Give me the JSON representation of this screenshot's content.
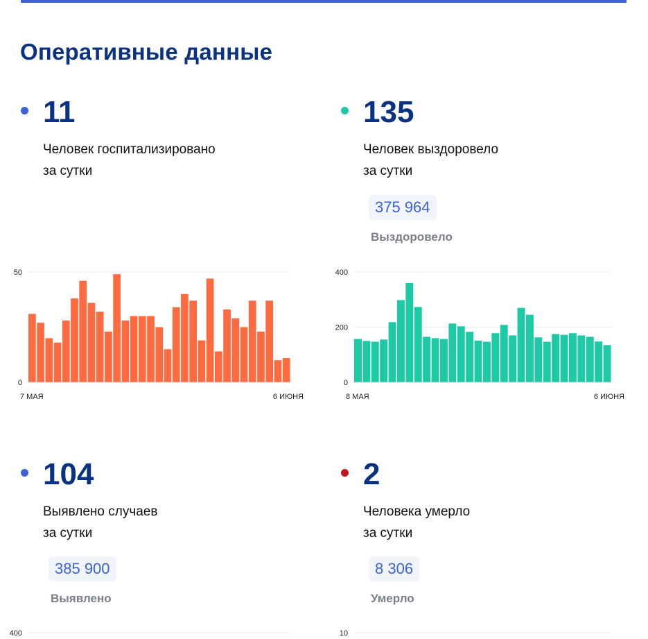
{
  "page_title": "Оперативные данные",
  "colors": {
    "accent_blue": "#3b62d8",
    "title_navy": "#0a3282",
    "hospitalized_bar": "#ff6b40",
    "recovered_bar": "#1ec9a6",
    "dead_dot": "#c8141e"
  },
  "stats": {
    "hospitalized": {
      "value": "11",
      "label_line1": "Человек госпитализировано",
      "label_line2": "за сутки"
    },
    "recovered": {
      "value": "135",
      "label_line1": "Человек выздоровело",
      "label_line2": "за сутки",
      "total": "375 964",
      "total_caption": "Выздоровело"
    },
    "cases": {
      "value": "104",
      "label_line1": "Выявлено случаев",
      "label_line2": "за сутки",
      "total": "385 900",
      "total_caption": "Выявлено"
    },
    "dead": {
      "value": "2",
      "label_line1": "Человека умерло",
      "label_line2": "за сутки",
      "total": "8 306",
      "total_caption": "Умерло"
    }
  },
  "chart_data": [
    {
      "type": "bar",
      "color": "#ff6b40",
      "ylim": [
        0,
        50
      ],
      "y_ticks": [
        "50",
        "0"
      ],
      "x_start_label": "7 МАЯ",
      "x_end_label": "6 ИЮНЯ",
      "values": [
        31,
        27,
        20,
        18,
        28,
        38,
        46,
        36,
        32,
        23,
        49,
        28,
        30,
        30,
        30,
        25,
        15,
        34,
        40,
        37,
        19,
        47,
        14,
        33,
        29,
        25,
        37,
        23,
        37,
        10,
        11
      ],
      "grid": true
    },
    {
      "type": "bar",
      "color": "#1ec9a6",
      "ylim": [
        0,
        400
      ],
      "y_ticks": [
        "400",
        "200",
        "0"
      ],
      "x_start_label": "8 МАЯ",
      "x_end_label": "6 ИЮНЯ",
      "values": [
        157,
        150,
        147,
        155,
        218,
        298,
        360,
        273,
        165,
        160,
        157,
        213,
        203,
        183,
        151,
        147,
        178,
        208,
        170,
        270,
        245,
        163,
        147,
        175,
        172,
        178,
        170,
        165,
        148,
        135
      ],
      "grid": true
    },
    {
      "type": "bar",
      "ylim": [
        0,
        400
      ],
      "y_ticks": [
        "400"
      ],
      "values": [],
      "grid": true
    },
    {
      "type": "bar",
      "ylim": [
        0,
        10
      ],
      "y_ticks": [
        "10"
      ],
      "values": [],
      "grid": true
    }
  ]
}
